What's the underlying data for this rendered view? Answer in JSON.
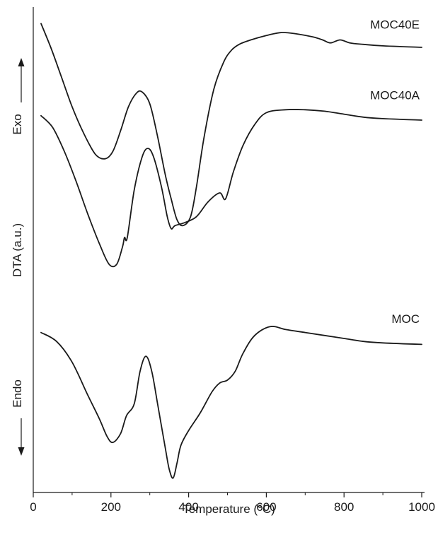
{
  "chart_data": {
    "type": "line",
    "title": "",
    "xlabel": "Temperature (°C)",
    "ylabel": "DTA (a.u.)",
    "xlim": [
      0,
      1000
    ],
    "xticks": [
      0,
      200,
      400,
      600,
      800,
      1000
    ],
    "xticks_minor": [
      100,
      300,
      500,
      700,
      900
    ],
    "yticks": [],
    "grid": false,
    "legend": "none",
    "annotations": {
      "exo_label": "Exo",
      "endo_label": "Endo"
    },
    "series": [
      {
        "name": "MOC40E",
        "x": [
          20,
          45,
          70,
          100,
          130,
          160,
          185,
          205,
          225,
          245,
          265,
          280,
          300,
          320,
          340,
          355,
          370,
          385,
          405,
          420,
          440,
          465,
          490,
          510,
          530,
          560,
          600,
          640,
          680,
          720,
          745,
          765,
          790,
          815,
          850,
          900,
          1000
        ],
        "y": [
          93,
          85,
          76,
          65,
          56,
          49,
          47.5,
          50,
          57,
          65,
          69.5,
          70,
          66,
          55,
          42,
          34,
          27,
          25,
          28,
          38,
          55,
          71,
          80,
          84,
          86,
          87.5,
          89,
          90,
          89.5,
          88.5,
          87.5,
          86.5,
          87.5,
          86.5,
          86,
          85.5,
          85
        ]
      },
      {
        "name": "MOC40A",
        "x": [
          20,
          50,
          80,
          110,
          140,
          170,
          195,
          215,
          230,
          235,
          242,
          260,
          280,
          295,
          310,
          330,
          345,
          355,
          365,
          390,
          420,
          450,
          480,
          495,
          515,
          540,
          570,
          600,
          650,
          700,
          750,
          800,
          850,
          900,
          1000
        ],
        "y": [
          62,
          58,
          50,
          40,
          29,
          19,
          12,
          12,
          18,
          21,
          21,
          37,
          48,
          51,
          48,
          38,
          28,
          24,
          25,
          26,
          28,
          33,
          36,
          34,
          43,
          52,
          59,
          63,
          64,
          64,
          63.5,
          62.5,
          61.5,
          61,
          60.5
        ]
      },
      {
        "name": "MOC",
        "x": [
          20,
          60,
          100,
          140,
          170,
          190,
          205,
          225,
          240,
          260,
          275,
          290,
          305,
          320,
          340,
          350,
          360,
          370,
          380,
          400,
          430,
          460,
          480,
          500,
          520,
          540,
          570,
          610,
          650,
          700,
          750,
          800,
          850,
          900,
          1000
        ],
        "y": [
          -11,
          -14,
          -21,
          -32,
          -40,
          -46,
          -48,
          -45,
          -39,
          -35,
          -24,
          -19,
          -24,
          -35,
          -50,
          -57,
          -60,
          -55,
          -49,
          -44,
          -38,
          -31,
          -28,
          -27,
          -24,
          -18,
          -12,
          -9,
          -10,
          -11,
          -12,
          -13,
          -14,
          -14.5,
          -15
        ]
      }
    ]
  }
}
